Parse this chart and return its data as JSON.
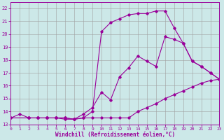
{
  "xlabel": "Windchill (Refroidissement éolien,°C)",
  "bg_color": "#cce8e8",
  "grid_color": "#a0a0a0",
  "line_color": "#990099",
  "xlim": [
    0,
    23
  ],
  "ylim": [
    13,
    22.5
  ],
  "yticks": [
    13,
    14,
    15,
    16,
    17,
    18,
    19,
    20,
    21,
    22
  ],
  "xticks": [
    0,
    1,
    2,
    3,
    4,
    5,
    6,
    7,
    8,
    9,
    10,
    11,
    12,
    13,
    14,
    15,
    16,
    17,
    18,
    19,
    20,
    21,
    22,
    23
  ],
  "curve1_x": [
    0,
    1,
    2,
    3,
    4,
    5,
    6,
    7,
    8,
    9,
    10,
    11,
    12,
    13,
    14,
    15,
    16,
    17,
    18,
    19,
    20,
    21,
    22,
    23
  ],
  "curve1_y": [
    13.5,
    13.8,
    13.5,
    13.5,
    13.5,
    13.5,
    13.4,
    13.4,
    13.5,
    13.5,
    13.5,
    13.5,
    13.5,
    13.5,
    14.0,
    14.3,
    14.6,
    15.0,
    15.3,
    15.6,
    15.9,
    16.2,
    16.4,
    16.5
  ],
  "curve2_x": [
    0,
    2,
    3,
    4,
    5,
    6,
    7,
    8,
    9,
    10,
    11,
    12,
    13,
    14,
    15,
    16,
    17,
    18,
    19,
    20,
    21,
    22,
    23
  ],
  "curve2_y": [
    13.5,
    13.5,
    13.5,
    13.5,
    13.5,
    13.5,
    13.4,
    13.8,
    14.3,
    15.5,
    14.9,
    16.7,
    17.4,
    18.3,
    17.9,
    17.5,
    19.8,
    19.6,
    19.3,
    17.9,
    17.5,
    17.0,
    16.5
  ],
  "curve3_x": [
    0,
    2,
    3,
    4,
    5,
    6,
    7,
    8,
    9,
    10,
    11,
    12,
    13,
    14,
    15,
    16,
    17,
    18,
    19,
    20,
    21,
    22,
    23
  ],
  "curve3_y": [
    13.5,
    13.5,
    13.5,
    13.5,
    13.5,
    13.5,
    13.4,
    13.5,
    14.0,
    20.2,
    20.9,
    21.2,
    21.5,
    21.6,
    21.6,
    21.8,
    21.8,
    20.5,
    19.3,
    17.9,
    17.5,
    17.0,
    16.5
  ]
}
